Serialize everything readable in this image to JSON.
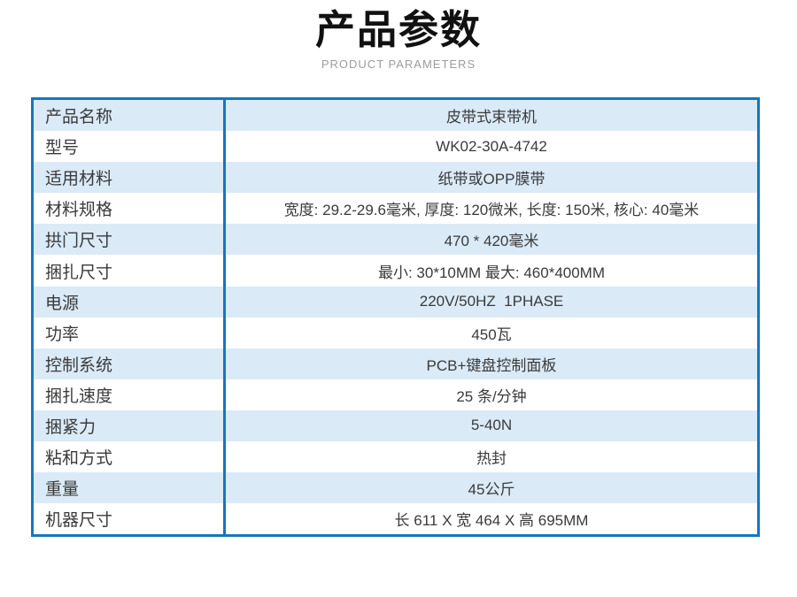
{
  "header": {
    "title": "产品参数",
    "subtitle": "PRODUCT PARAMETERS"
  },
  "colors": {
    "table_border": "#1577bd",
    "row_alt_bg": "#daeaf7",
    "row_bg": "#ffffff",
    "title_color": "#111111",
    "subtitle_color": "#9c9c9c",
    "text_color": "#3a3a3a"
  },
  "table": {
    "rows": [
      {
        "label": "产品名称",
        "value": "皮带式束带机"
      },
      {
        "label": "型号",
        "value": "WK02-30A-4742"
      },
      {
        "label": "适用材料",
        "value": "纸带或OPP膜带"
      },
      {
        "label": "材料规格",
        "value": "宽度: 29.2-29.6毫米, 厚度: 120微米, 长度: 150米, 核心: 40毫米"
      },
      {
        "label": "拱门尺寸",
        "value": "470 * 420毫米"
      },
      {
        "label": "捆扎尺寸",
        "value": "最小: 30*10MM 最大: 460*400MM"
      },
      {
        "label": "电源",
        "value": "220V/50HZ  1PHASE"
      },
      {
        "label": "功率",
        "value": "450瓦"
      },
      {
        "label": "控制系统",
        "value": "PCB+键盘控制面板"
      },
      {
        "label": "捆扎速度",
        "value": "25 条/分钟"
      },
      {
        "label": "捆紧力",
        "value": "5-40N"
      },
      {
        "label": "粘和方式",
        "value": "热封"
      },
      {
        "label": "重量",
        "value": "45公斤"
      },
      {
        "label": "机器尺寸",
        "value": "长 611 X 宽 464 X 高 695MM"
      }
    ]
  }
}
